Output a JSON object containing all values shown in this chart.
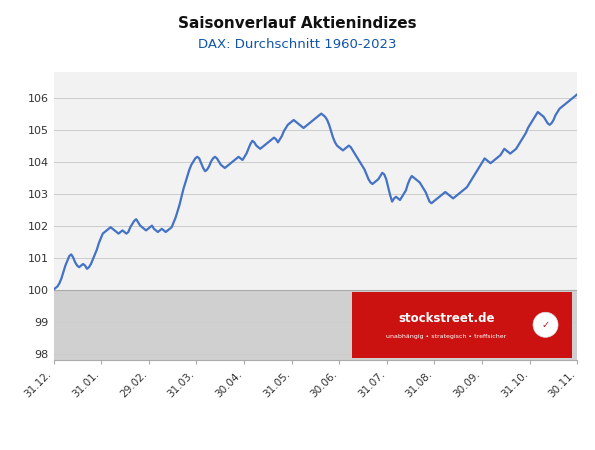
{
  "title": "Saisonverlauf Aktienindizes",
  "subtitle": "DAX: Durchschnitt 1960-2023",
  "title_fontsize": 11,
  "subtitle_fontsize": 9.5,
  "line_color": "#4472C4",
  "line_width": 1.6,
  "background_color": "#ffffff",
  "plot_bg_color": "#f2f2f2",
  "below_100_bg": "#d0d0d0",
  "yticks": [
    98,
    99,
    100,
    101,
    102,
    103,
    104,
    105,
    106
  ],
  "ylim": [
    97.8,
    106.8
  ],
  "xtick_labels": [
    "31.12.",
    "31.01.",
    "29.02.",
    "31.03.",
    "30.04.",
    "31.05.",
    "30.06.",
    "31.07.",
    "31.08.",
    "30.09.",
    "31.10.",
    "30.11."
  ],
  "grid_color": "#cccccc",
  "watermark_text": "stockstreet.de",
  "watermark_subtext": "unabhängig • strategisch • treffsicher",
  "y_data": [
    100.0,
    100.05,
    100.1,
    100.2,
    100.35,
    100.55,
    100.75,
    100.9,
    101.05,
    101.1,
    101.0,
    100.85,
    100.75,
    100.7,
    100.75,
    100.8,
    100.75,
    100.65,
    100.7,
    100.8,
    100.95,
    101.1,
    101.25,
    101.45,
    101.6,
    101.75,
    101.8,
    101.85,
    101.9,
    101.95,
    101.9,
    101.85,
    101.8,
    101.75,
    101.8,
    101.85,
    101.8,
    101.75,
    101.8,
    101.95,
    102.05,
    102.15,
    102.2,
    102.1,
    102.0,
    101.95,
    101.9,
    101.85,
    101.9,
    101.95,
    102.0,
    101.9,
    101.85,
    101.8,
    101.85,
    101.9,
    101.85,
    101.8,
    101.85,
    101.9,
    101.95,
    102.1,
    102.25,
    102.45,
    102.65,
    102.9,
    103.15,
    103.35,
    103.55,
    103.75,
    103.9,
    104.0,
    104.1,
    104.15,
    104.1,
    103.95,
    103.8,
    103.7,
    103.75,
    103.85,
    104.0,
    104.1,
    104.15,
    104.1,
    104.0,
    103.9,
    103.85,
    103.8,
    103.85,
    103.9,
    103.95,
    104.0,
    104.05,
    104.1,
    104.15,
    104.1,
    104.05,
    104.15,
    104.25,
    104.4,
    104.55,
    104.65,
    104.6,
    104.5,
    104.45,
    104.4,
    104.45,
    104.5,
    104.55,
    104.6,
    104.65,
    104.7,
    104.75,
    104.7,
    104.6,
    104.7,
    104.8,
    104.95,
    105.05,
    105.15,
    105.2,
    105.25,
    105.3,
    105.25,
    105.2,
    105.15,
    105.1,
    105.05,
    105.1,
    105.15,
    105.2,
    105.25,
    105.3,
    105.35,
    105.4,
    105.45,
    105.5,
    105.45,
    105.4,
    105.3,
    105.15,
    104.95,
    104.75,
    104.6,
    104.5,
    104.45,
    104.4,
    104.35,
    104.4,
    104.45,
    104.5,
    104.45,
    104.35,
    104.25,
    104.15,
    104.05,
    103.95,
    103.85,
    103.75,
    103.6,
    103.45,
    103.35,
    103.3,
    103.35,
    103.4,
    103.45,
    103.55,
    103.65,
    103.6,
    103.45,
    103.2,
    102.95,
    102.75,
    102.85,
    102.9,
    102.85,
    102.8,
    102.9,
    103.0,
    103.1,
    103.3,
    103.45,
    103.55,
    103.5,
    103.45,
    103.4,
    103.35,
    103.25,
    103.15,
    103.05,
    102.9,
    102.75,
    102.7,
    102.75,
    102.8,
    102.85,
    102.9,
    102.95,
    103.0,
    103.05,
    103.0,
    102.95,
    102.9,
    102.85,
    102.9,
    102.95,
    103.0,
    103.05,
    103.1,
    103.15,
    103.2,
    103.3,
    103.4,
    103.5,
    103.6,
    103.7,
    103.8,
    103.9,
    104.0,
    104.1,
    104.05,
    104.0,
    103.95,
    104.0,
    104.05,
    104.1,
    104.15,
    104.2,
    104.3,
    104.4,
    104.35,
    104.3,
    104.25,
    104.3,
    104.35,
    104.4,
    104.5,
    104.6,
    104.7,
    104.8,
    104.9,
    105.05,
    105.15,
    105.25,
    105.35,
    105.45,
    105.55,
    105.5,
    105.45,
    105.4,
    105.3,
    105.2,
    105.15,
    105.2,
    105.3,
    105.45,
    105.55,
    105.65,
    105.7,
    105.75,
    105.8,
    105.85,
    105.9,
    105.95,
    106.0,
    106.05,
    106.1
  ]
}
